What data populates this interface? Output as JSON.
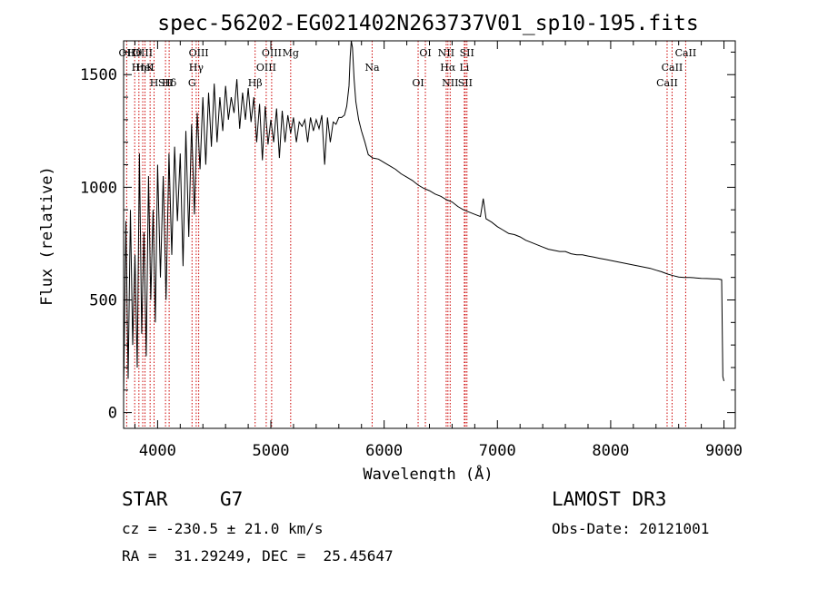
{
  "chart_data": {
    "type": "line",
    "title": "spec-56202-EG021402N263737V01_sp10-195.fits",
    "xlabel": "Wavelength (Å)",
    "ylabel": "Flux (relative)",
    "xlim": [
      3700,
      9100
    ],
    "ylim": [
      -70,
      1650
    ],
    "xticks": [
      4000,
      5000,
      6000,
      7000,
      8000,
      9000
    ],
    "yticks": [
      0,
      500,
      1000,
      1500
    ],
    "series": [
      {
        "name": "flux",
        "x": [
          3700,
          3720,
          3740,
          3760,
          3780,
          3800,
          3820,
          3840,
          3860,
          3880,
          3900,
          3920,
          3940,
          3960,
          3980,
          4000,
          4025,
          4050,
          4075,
          4100,
          4125,
          4150,
          4175,
          4200,
          4225,
          4250,
          4275,
          4300,
          4325,
          4350,
          4375,
          4400,
          4425,
          4450,
          4475,
          4500,
          4525,
          4550,
          4575,
          4600,
          4625,
          4650,
          4675,
          4700,
          4725,
          4750,
          4775,
          4800,
          4825,
          4850,
          4875,
          4900,
          4925,
          4950,
          4975,
          5000,
          5025,
          5050,
          5075,
          5100,
          5125,
          5150,
          5175,
          5200,
          5225,
          5250,
          5275,
          5300,
          5325,
          5350,
          5375,
          5400,
          5425,
          5450,
          5475,
          5500,
          5525,
          5550,
          5575,
          5600,
          5625,
          5650,
          5670,
          5690,
          5700,
          5710,
          5720,
          5735,
          5750,
          5775,
          5800,
          5830,
          5860,
          5900,
          5950,
          6000,
          6050,
          6100,
          6150,
          6200,
          6250,
          6300,
          6350,
          6400,
          6450,
          6500,
          6550,
          6600,
          6650,
          6700,
          6750,
          6800,
          6850,
          6875,
          6900,
          6950,
          7000,
          7050,
          7100,
          7150,
          7200,
          7250,
          7300,
          7350,
          7400,
          7450,
          7500,
          7550,
          7600,
          7650,
          7700,
          7750,
          7800,
          7850,
          7900,
          7950,
          8000,
          8050,
          8100,
          8150,
          8200,
          8250,
          8300,
          8350,
          8400,
          8450,
          8500,
          8550,
          8600,
          8650,
          8700,
          8750,
          8800,
          8850,
          8900,
          8950,
          8980,
          8990,
          9000
        ],
        "y": [
          80,
          850,
          150,
          900,
          300,
          700,
          200,
          1150,
          350,
          800,
          250,
          1050,
          500,
          900,
          400,
          1100,
          600,
          1050,
          500,
          1150,
          700,
          1180,
          850,
          1150,
          650,
          1250,
          780,
          1280,
          880,
          1330,
          1080,
          1400,
          1100,
          1420,
          1180,
          1460,
          1200,
          1400,
          1250,
          1450,
          1300,
          1400,
          1330,
          1480,
          1260,
          1420,
          1300,
          1440,
          1290,
          1400,
          1200,
          1370,
          1120,
          1360,
          1190,
          1300,
          1200,
          1350,
          1130,
          1340,
          1200,
          1320,
          1240,
          1310,
          1200,
          1290,
          1270,
          1300,
          1200,
          1310,
          1250,
          1300,
          1260,
          1320,
          1100,
          1310,
          1200,
          1290,
          1280,
          1310,
          1310,
          1320,
          1360,
          1450,
          1580,
          1650,
          1620,
          1480,
          1380,
          1300,
          1250,
          1200,
          1145,
          1130,
          1125,
          1110,
          1095,
          1080,
          1060,
          1045,
          1030,
          1010,
          995,
          985,
          970,
          960,
          945,
          935,
          915,
          900,
          890,
          880,
          870,
          950,
          860,
          845,
          825,
          810,
          795,
          790,
          780,
          765,
          755,
          745,
          735,
          725,
          720,
          715,
          715,
          705,
          700,
          700,
          695,
          690,
          685,
          680,
          675,
          670,
          665,
          660,
          655,
          650,
          645,
          640,
          632,
          625,
          615,
          608,
          602,
          600,
          600,
          598,
          596,
          595,
          594,
          593,
          590,
          160,
          140
        ]
      }
    ],
    "lines": [
      {
        "name": "Hθ",
        "x": 3798
      },
      {
        "name": "K",
        "x": 3934
      },
      {
        "name": "Hδ",
        "x": 4102
      },
      {
        "name": "OII",
        "x": 3727
      },
      {
        "name": "HeI",
        "x": 3889
      },
      {
        "name": "SII",
        "x": 4070
      },
      {
        "name": "OIII",
        "x": 3869
      },
      {
        "name": "Hη",
        "x": 3835
      },
      {
        "name": "H",
        "x": 3969
      },
      {
        "name": "OIII",
        "x": 4363
      },
      {
        "name": "Hγ",
        "x": 4341
      },
      {
        "name": "G",
        "x": 4304
      },
      {
        "name": "OIII",
        "x": 5007
      },
      {
        "name": "OIII",
        "x": 4959
      },
      {
        "name": "Hβ",
        "x": 4861
      },
      {
        "name": "Mg",
        "x": 5175
      },
      {
        "name": "Na",
        "x": 5894
      },
      {
        "name": "OI",
        "x": 6300
      },
      {
        "name": "OI",
        "x": 6364
      },
      {
        "name": "Hα",
        "x": 6563
      },
      {
        "name": "SII",
        "x": 6716
      },
      {
        "name": "NII",
        "x": 6548
      },
      {
        "name": "Li",
        "x": 6708
      },
      {
        "name": "NII",
        "x": 6583
      },
      {
        "name": "SII",
        "x": 6731
      },
      {
        "name": "CaII",
        "x": 8542
      },
      {
        "name": "CaII",
        "x": 8498
      },
      {
        "name": "CaII",
        "x": 8662
      }
    ]
  },
  "info": {
    "class": "STAR",
    "subclass": "G7",
    "cz": "cz = -230.5 ± 21.0 km/s",
    "coords": "RA =  31.29249, DEC =  25.45647",
    "survey": "LAMOST DR3",
    "obs_date": "Obs-Date: 20121001"
  },
  "colors": {
    "line_marker": "#cc0000",
    "spectrum": "#000000"
  }
}
